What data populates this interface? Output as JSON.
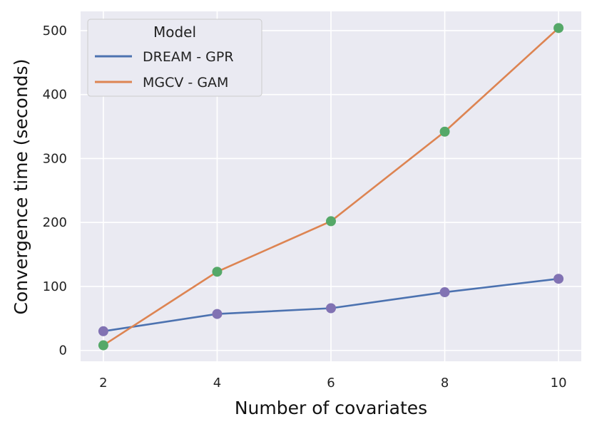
{
  "chart_data": {
    "type": "line",
    "title": "",
    "xlabel": "Number of covariates",
    "ylabel": "Convergence time (seconds)",
    "x": [
      2,
      4,
      6,
      8,
      10
    ],
    "xticks": [
      2,
      4,
      6,
      8,
      10
    ],
    "yticks": [
      0,
      100,
      200,
      300,
      400,
      500
    ],
    "xlim": [
      1.6,
      10.4
    ],
    "ylim": [
      -17,
      530
    ],
    "grid": true,
    "legend": {
      "title": "Model",
      "position": "top-left"
    },
    "series": [
      {
        "name": "DREAM - GPR",
        "values": [
          30,
          57,
          66,
          91,
          112
        ],
        "line_color": "#4c72b0",
        "marker_color": "#8172b3"
      },
      {
        "name": "MGCV - GAM",
        "values": [
          8,
          123,
          202,
          342,
          504
        ],
        "line_color": "#dd8452",
        "marker_color": "#55a868"
      }
    ],
    "background_color": "#eaeaf2"
  }
}
